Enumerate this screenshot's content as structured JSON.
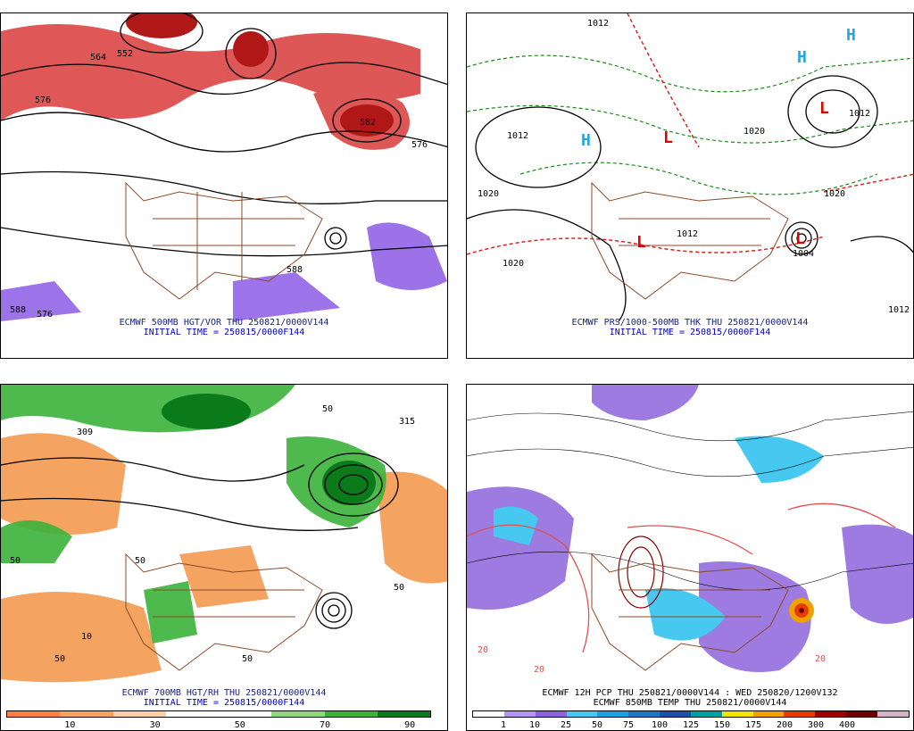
{
  "panels": [
    {
      "id": "p1",
      "title": "ECMWF 500MB HGT/VOR THU 250821/0000V144",
      "init": "INITIAL TIME = 250815/0000F144",
      "contour_labels": [
        "552",
        "564",
        "576",
        "588",
        "576",
        "582",
        "588",
        "576"
      ],
      "hl": []
    },
    {
      "id": "p2",
      "title": "ECMWF PRS/1000-500MB THK THU 250821/0000V144",
      "init": "INITIAL TIME = 250815/0000F144",
      "contour_labels": [
        "1012",
        "1012",
        "1020",
        "1020",
        "1012",
        "1020",
        "1020",
        "1004",
        "1012",
        "1012"
      ],
      "hl": [
        {
          "t": "H",
          "c": "#29a3e0"
        },
        {
          "t": "H",
          "c": "#29a3e0"
        },
        {
          "t": "H",
          "c": "#29a3e0"
        },
        {
          "t": "L",
          "c": "#e00000"
        },
        {
          "t": "L",
          "c": "#e00000"
        },
        {
          "t": "L",
          "c": "#e00000"
        },
        {
          "t": "L",
          "c": "#e00000"
        }
      ]
    },
    {
      "id": "p3",
      "title": "ECMWF 700MB HGT/RH THU 250821/0000V144",
      "init": "INITIAL TIME = 250815/0000F144",
      "contour_labels": [
        "309",
        "315",
        "50",
        "50",
        "50",
        "10",
        "50",
        "50",
        "50"
      ],
      "hl": []
    },
    {
      "id": "p4",
      "title": "ECMWF 12H PCP THU 250821/0000V144 : WED 250820/1200V132",
      "init": "ECMWF 850MB TEMP THU 250821/0000V144",
      "contour_labels": [
        "20",
        "20",
        "20"
      ],
      "hl": []
    }
  ],
  "colorbar_rh": {
    "ticks": [
      "10",
      "30",
      "50",
      "70",
      "90"
    ],
    "colors": [
      "#ff8040",
      "#f4a460",
      "#ffd0a8",
      "#ffffff",
      "#ffffff",
      "#8fd87c",
      "#3bb33b",
      "#0a7a1a"
    ]
  },
  "colorbar_pcp": {
    "ticks": [
      "1",
      "10",
      "25",
      "50",
      "75",
      "100",
      "125",
      "150",
      "175",
      "200",
      "300",
      "400"
    ],
    "colors": [
      "#ffffff",
      "#b496f0",
      "#8c64dc",
      "#46c8f0",
      "#1ea0e6",
      "#1e78c8",
      "#1e50aa",
      "#00a0a0",
      "#f0e600",
      "#f0a000",
      "#e63c00",
      "#a00000",
      "#6e0000",
      "#d4b4c8"
    ]
  }
}
